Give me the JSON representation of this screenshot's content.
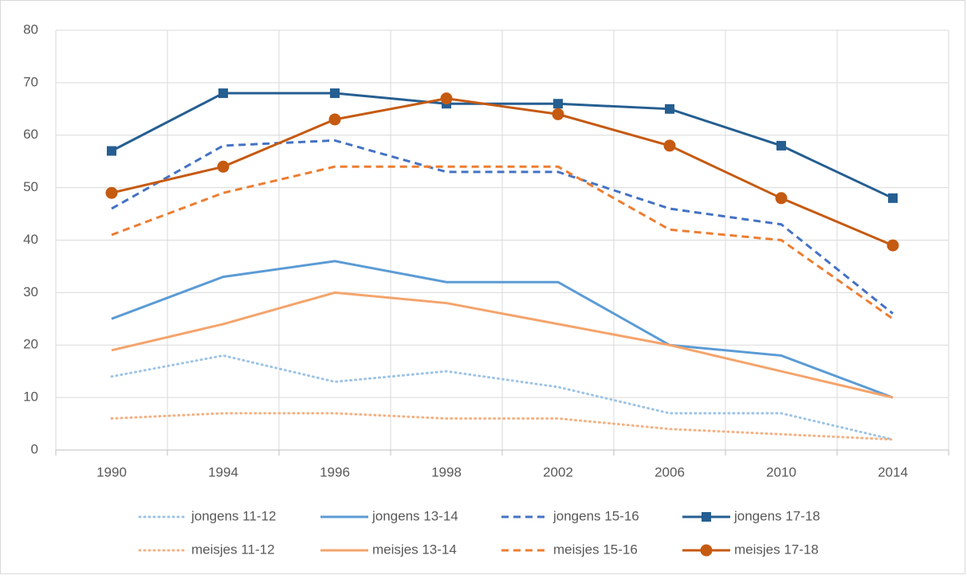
{
  "chart_data": {
    "type": "line",
    "categories": [
      "1990",
      "1994",
      "1996",
      "1998",
      "2002",
      "2006",
      "2010",
      "2014"
    ],
    "ylim": [
      0,
      80
    ],
    "yticks": [
      0,
      10,
      20,
      30,
      40,
      50,
      60,
      70,
      80
    ],
    "grid": true,
    "legend": "bottom",
    "series": [
      {
        "name": "jongens 11-12",
        "color": "#9dc3e6",
        "dash": "dotted",
        "values": [
          14,
          18,
          13,
          15,
          12,
          7,
          7,
          2
        ]
      },
      {
        "name": "jongens 13-14",
        "color": "#5b9bd5",
        "dash": "solid",
        "values": [
          25,
          33,
          36,
          32,
          32,
          20,
          18,
          10
        ]
      },
      {
        "name": "jongens 15-16",
        "color": "#4472c4",
        "dash": "dashed",
        "values": [
          46,
          58,
          59,
          53,
          53,
          46,
          43,
          26
        ]
      },
      {
        "name": "jongens 17-18",
        "color": "#255e91",
        "dash": "solid",
        "marker": "square",
        "values": [
          57,
          68,
          68,
          66,
          66,
          65,
          58,
          48
        ]
      },
      {
        "name": "meisjes 11-12",
        "color": "#f4b183",
        "dash": "dotted",
        "values": [
          6,
          7,
          7,
          6,
          6,
          4,
          3,
          2
        ]
      },
      {
        "name": "meisjes 13-14",
        "color": "#f4a46c",
        "dash": "solid",
        "values": [
          19,
          24,
          30,
          28,
          24,
          20,
          15,
          10
        ]
      },
      {
        "name": "meisjes 15-16",
        "color": "#ed7d31",
        "dash": "dashed",
        "values": [
          41,
          49,
          54,
          54,
          54,
          42,
          40,
          25
        ]
      },
      {
        "name": "meisjes 17-18",
        "color": "#c55a11",
        "dash": "solid",
        "marker": "circle",
        "values": [
          49,
          54,
          63,
          67,
          64,
          58,
          48,
          39
        ]
      }
    ]
  }
}
